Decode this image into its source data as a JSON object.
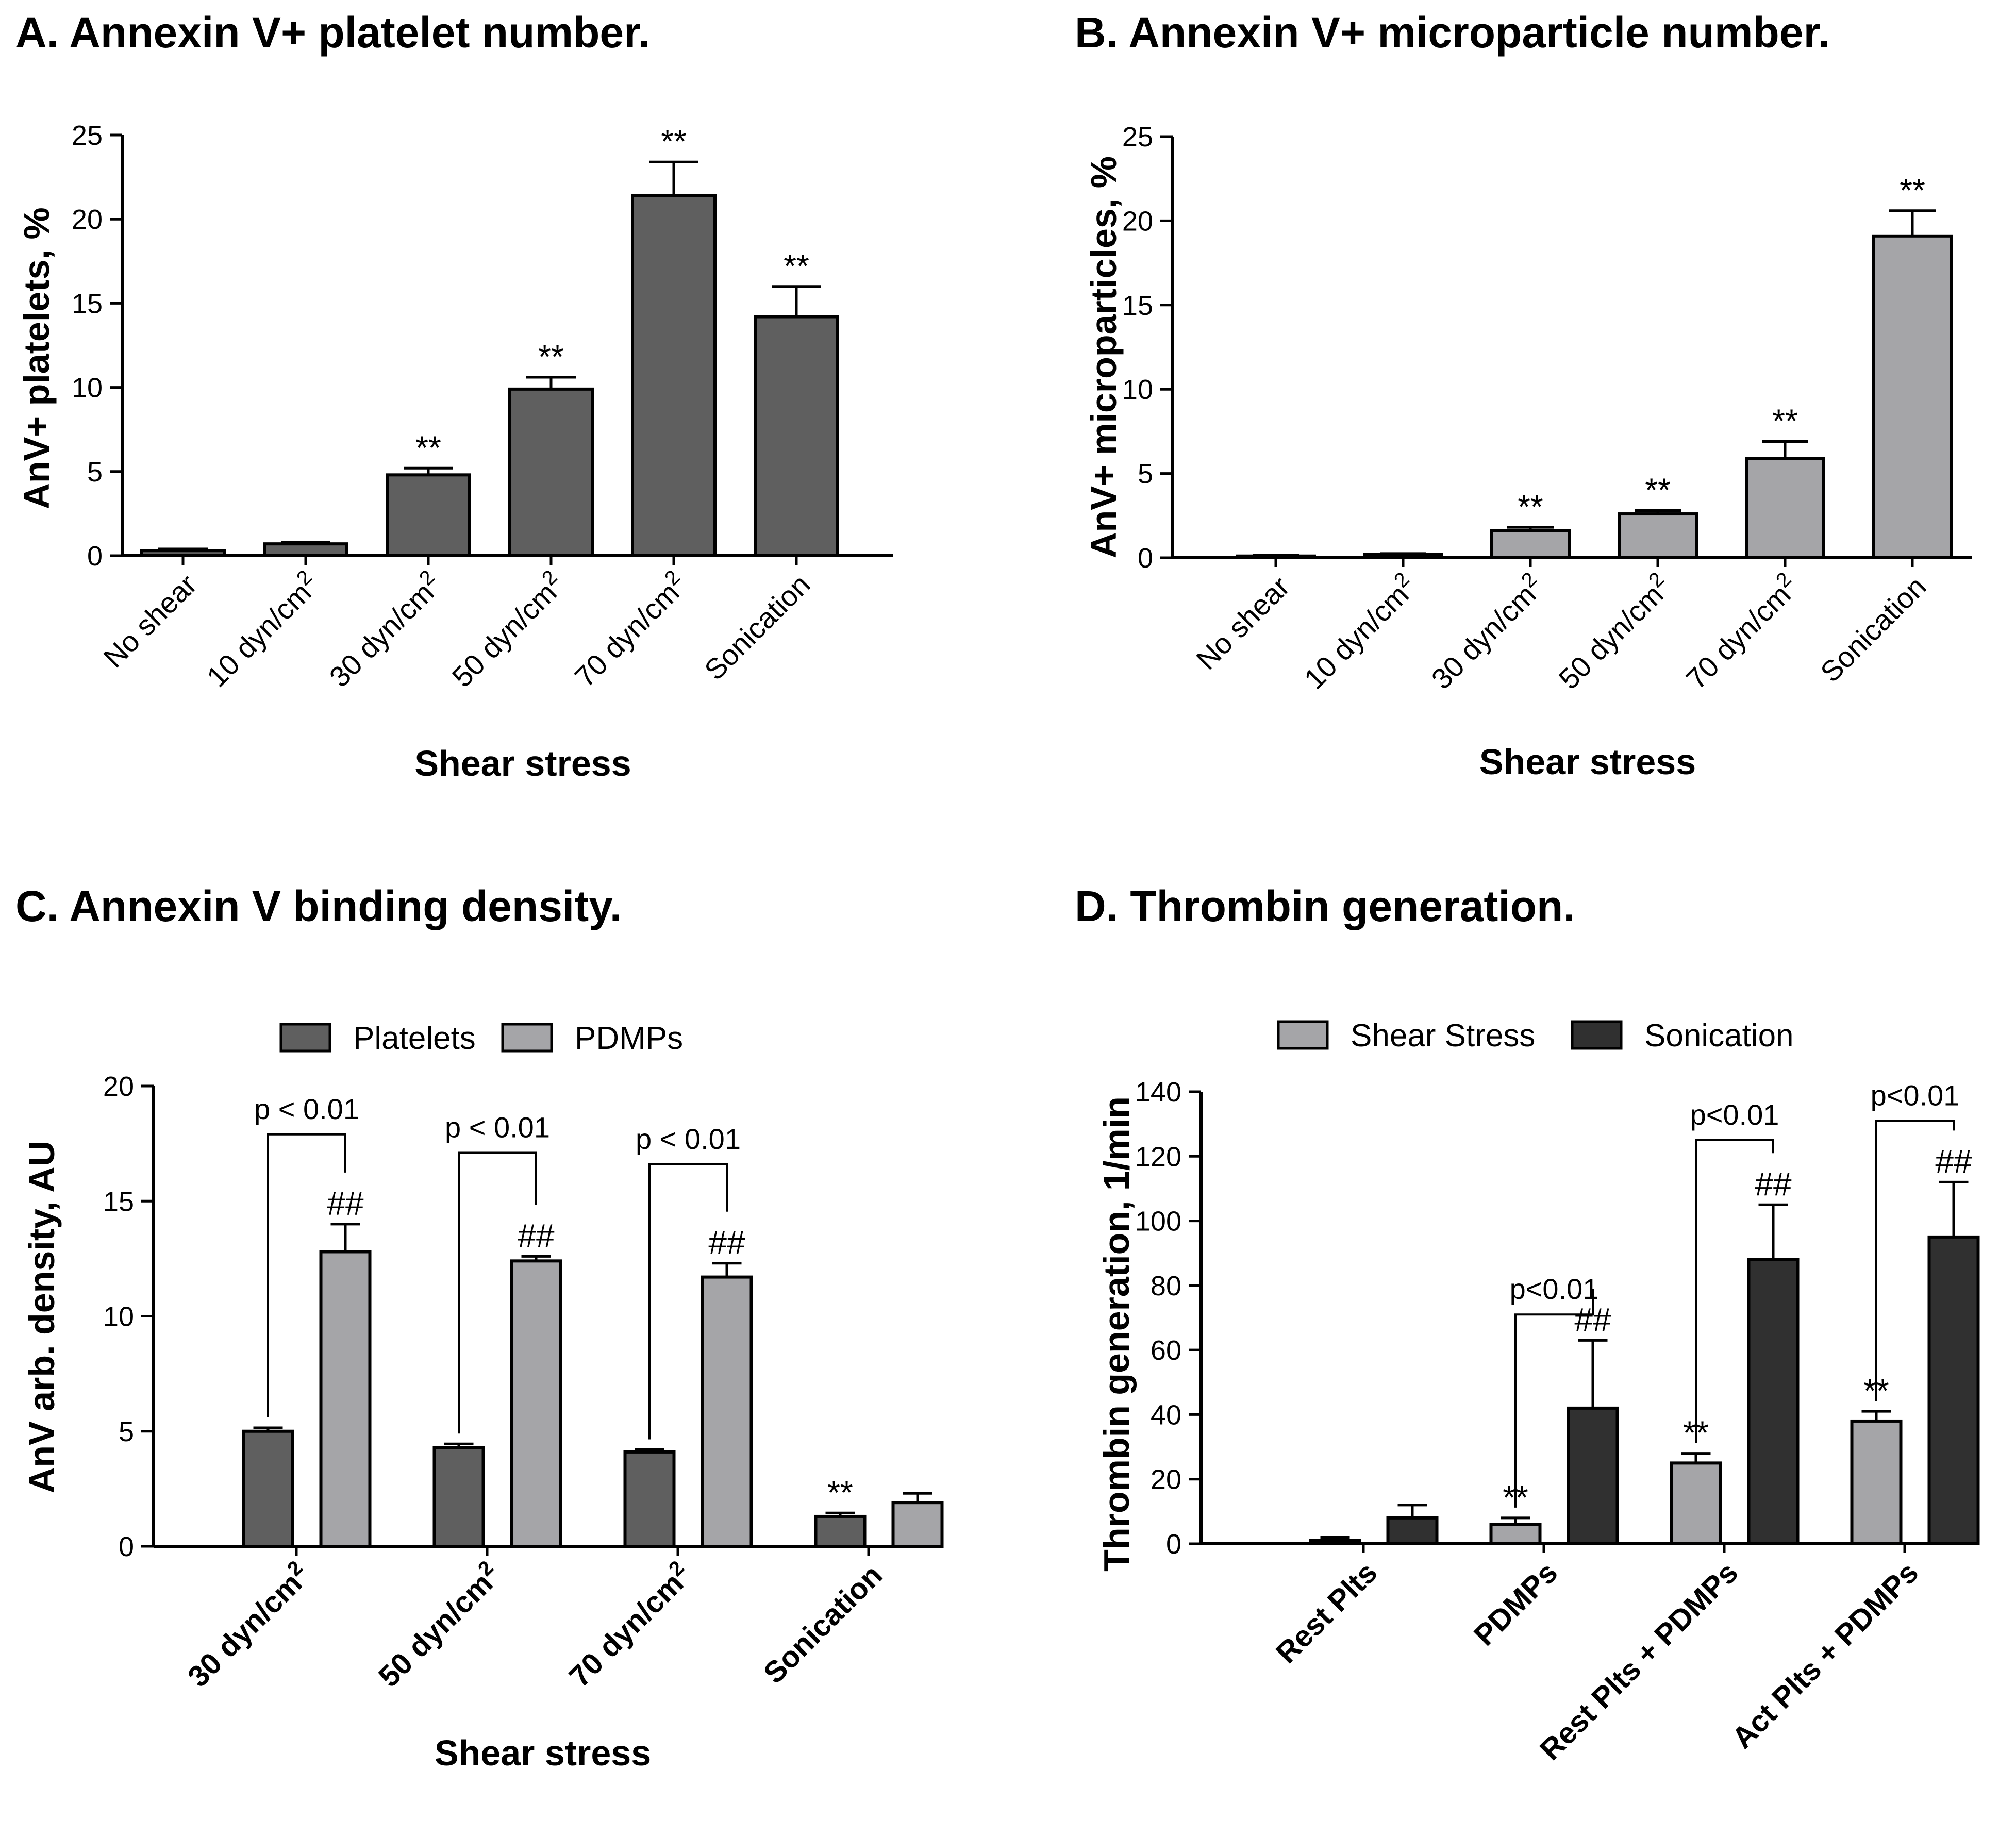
{
  "figure": {
    "colors": {
      "dark_bar": "#5f5f5f",
      "light_bar": "#a5a5a8",
      "black_bar": "#303030",
      "axis": "#000000",
      "text": "#000000"
    }
  },
  "chart_data": [
    {
      "id": "A",
      "type": "bar",
      "title": "A. Annexin V+ platelet number.",
      "xlabel": "Shear stress",
      "ylabel": "AnV+ platelets, %",
      "ylim": [
        0,
        25
      ],
      "yticks": [
        "0",
        "5",
        "10",
        "15",
        "20",
        "25"
      ],
      "categories": [
        {
          "label": "No shear",
          "sup": ""
        },
        {
          "label": "10 dyn/cm",
          "sup": "2"
        },
        {
          "label": "30 dyn/cm",
          "sup": "2"
        },
        {
          "label": "50 dyn/cm",
          "sup": "2"
        },
        {
          "label": "70 dyn/cm",
          "sup": "2"
        },
        {
          "label": "Sonication",
          "sup": ""
        }
      ],
      "series": [
        {
          "name": "AnV+ platelets",
          "color": "#5f5f5f",
          "values": [
            0.3,
            0.7,
            4.8,
            9.9,
            21.4,
            14.2
          ],
          "errors": [
            0.1,
            0.1,
            0.4,
            0.7,
            2.0,
            1.8
          ],
          "annotations": [
            "",
            "",
            "**",
            "**",
            "**",
            "**"
          ]
        }
      ]
    },
    {
      "id": "B",
      "type": "bar",
      "title": "B. Annexin V+ microparticle number.",
      "xlabel": "Shear stress",
      "ylabel": "AnV+ microparticles, %",
      "ylim": [
        0,
        25
      ],
      "yticks": [
        "0",
        "5",
        "10",
        "15",
        "20",
        "25"
      ],
      "categories": [
        {
          "label": "No shear",
          "sup": ""
        },
        {
          "label": "10 dyn/cm",
          "sup": "2"
        },
        {
          "label": "30 dyn/cm",
          "sup": "2"
        },
        {
          "label": "50 dyn/cm",
          "sup": "2"
        },
        {
          "label": "70 dyn/cm",
          "sup": "2"
        },
        {
          "label": "Sonication",
          "sup": ""
        }
      ],
      "series": [
        {
          "name": "AnV+ microparticles",
          "color": "#a5a5a8",
          "values": [
            0.1,
            0.2,
            1.6,
            2.6,
            5.9,
            19.1
          ],
          "errors": [
            0.05,
            0.05,
            0.2,
            0.2,
            1.0,
            1.5
          ],
          "annotations": [
            "",
            "",
            "**",
            "**",
            "**",
            "**"
          ]
        }
      ]
    },
    {
      "id": "C",
      "type": "bar",
      "title": "C. Annexin V binding density.",
      "xlabel": "Shear stress",
      "ylabel": "AnV arb. density, AU",
      "ylim": [
        0,
        20
      ],
      "yticks": [
        "0",
        "5",
        "10",
        "15",
        "20"
      ],
      "categories": [
        {
          "label": "30 dyn/cm",
          "sup": "2"
        },
        {
          "label": "50 dyn/cm",
          "sup": "2"
        },
        {
          "label": "70 dyn/cm",
          "sup": "2"
        },
        {
          "label": "Sonication",
          "sup": ""
        }
      ],
      "legend": [
        "Platelets",
        "PDMPs"
      ],
      "series": [
        {
          "name": "Platelets",
          "color": "#5f5f5f",
          "values": [
            5.0,
            4.3,
            4.1,
            1.3
          ],
          "errors": [
            0.15,
            0.15,
            0.1,
            0.15
          ],
          "annotations": [
            "",
            "",
            "",
            "**"
          ]
        },
        {
          "name": "PDMPs",
          "color": "#a5a5a8",
          "values": [
            12.8,
            12.4,
            11.7,
            1.9
          ],
          "errors": [
            1.2,
            0.2,
            0.6,
            0.4
          ],
          "annotations": [
            "##",
            "##",
            "##",
            ""
          ]
        }
      ],
      "brackets": [
        {
          "category": 0,
          "text": "p < 0.01",
          "top": 17.9
        },
        {
          "category": 1,
          "text": "p < 0.01",
          "top": 17.1
        },
        {
          "category": 2,
          "text": "p < 0.01",
          "top": 16.6
        }
      ]
    },
    {
      "id": "D",
      "type": "bar",
      "title": "D. Thrombin generation.",
      "xlabel": "",
      "ylabel": "Thrombin generation, 1/min",
      "ylim": [
        0,
        140
      ],
      "yticks": [
        "0",
        "20",
        "40",
        "60",
        "80",
        "100",
        "120",
        "140"
      ],
      "categories": [
        {
          "label": "Rest Plts",
          "sup": ""
        },
        {
          "label": "PDMPs",
          "sup": ""
        },
        {
          "label": "Rest Plts + PDMPs",
          "sup": ""
        },
        {
          "label": "Act Plts + PDMPs",
          "sup": ""
        }
      ],
      "legend": [
        "Shear Stress",
        "Sonication"
      ],
      "series": [
        {
          "name": "Shear Stress",
          "color": "#a5a5a8",
          "values": [
            1,
            6,
            25,
            38
          ],
          "errors": [
            1,
            2,
            3,
            3
          ],
          "annotations": [
            "",
            "**",
            "**",
            "**"
          ]
        },
        {
          "name": "Sonication",
          "color": "#303030",
          "values": [
            8,
            42,
            88,
            95
          ],
          "errors": [
            4,
            21,
            17,
            17
          ],
          "annotations": [
            "",
            "##",
            "##",
            "##"
          ]
        }
      ],
      "brackets": [
        {
          "category": 1,
          "text": "p<0.01",
          "top": 71
        },
        {
          "category": 2,
          "text": "p<0.01",
          "top": 125
        },
        {
          "category": 3,
          "text": "p<0.01",
          "top": 131
        }
      ]
    }
  ]
}
